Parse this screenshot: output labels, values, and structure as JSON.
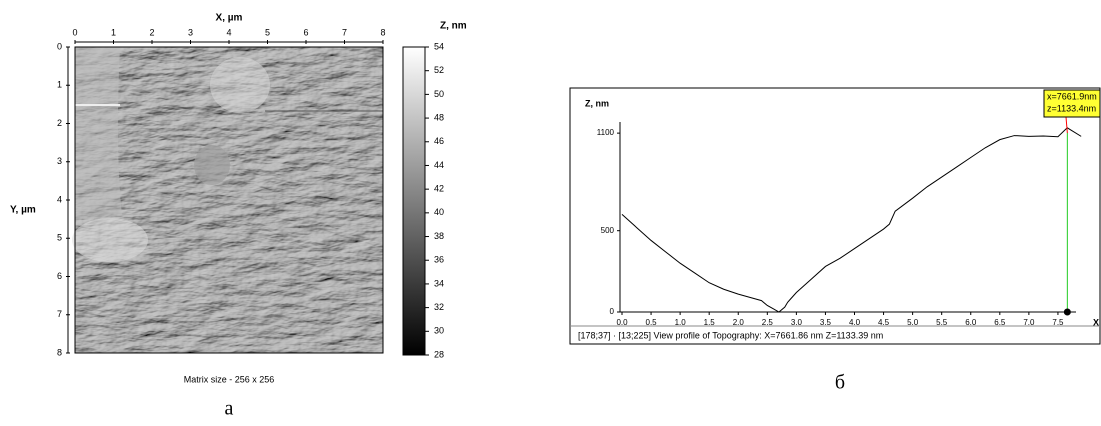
{
  "chart_data": [
    {
      "type": "image",
      "xlabel": "X, µm",
      "ylabel": "Y, µm",
      "colorbar_label": "Z, nm",
      "xlim": [
        0,
        8
      ],
      "ylim": [
        0,
        8
      ],
      "y_inverted": true,
      "xticks": [
        0,
        1,
        2,
        3,
        4,
        5,
        6,
        7,
        8
      ],
      "yticks": [
        0,
        1,
        2,
        3,
        4,
        5,
        6,
        7,
        8
      ],
      "zlim": [
        28,
        54
      ],
      "zticks": [
        28,
        30,
        32,
        34,
        36,
        38,
        40,
        42,
        44,
        46,
        48,
        50,
        52,
        54
      ],
      "note": "Matrix size - 256 x 256",
      "caption": "а"
    },
    {
      "type": "line",
      "ylabel": "Z, nm",
      "xlabel": "X",
      "color": "#000000",
      "x": [
        0,
        0.25,
        0.5,
        0.75,
        1.0,
        1.25,
        1.5,
        1.75,
        2.0,
        2.1,
        2.2,
        2.4,
        2.5,
        2.6,
        2.7,
        2.8,
        2.85,
        2.9,
        3.0,
        3.25,
        3.5,
        3.75,
        4.0,
        4.25,
        4.5,
        4.6,
        4.7,
        5.0,
        5.25,
        5.5,
        5.75,
        6.0,
        6.25,
        6.5,
        6.75,
        7.0,
        7.25,
        7.5,
        7.66,
        7.9
      ],
      "values": [
        600,
        520,
        440,
        370,
        300,
        240,
        180,
        140,
        110,
        100,
        90,
        70,
        40,
        20,
        0,
        30,
        60,
        80,
        120,
        200,
        280,
        330,
        390,
        450,
        510,
        540,
        620,
        700,
        770,
        830,
        890,
        950,
        1010,
        1060,
        1085,
        1080,
        1082,
        1078,
        1133,
        1080
      ],
      "xlim": [
        0,
        8
      ],
      "ylim": [
        0,
        1150
      ],
      "xticks": [
        {
          "value": 0,
          "label": "0.0"
        },
        {
          "value": 0.5,
          "label": "0.5"
        },
        {
          "value": 1,
          "label": "1.0"
        },
        {
          "value": 1.5,
          "label": "1.5"
        },
        {
          "value": 2,
          "label": "2.0"
        },
        {
          "value": 2.5,
          "label": "2.5"
        },
        {
          "value": 3,
          "label": "3.0"
        },
        {
          "value": 3.5,
          "label": "3.5"
        },
        {
          "value": 4,
          "label": "4.0"
        },
        {
          "value": 4.5,
          "label": "4.5"
        },
        {
          "value": 5,
          "label": "5.0"
        },
        {
          "value": 5.5,
          "label": "5.5"
        },
        {
          "value": 6,
          "label": "6.0"
        },
        {
          "value": 6.5,
          "label": "6.5"
        },
        {
          "value": 7,
          "label": "7.0"
        },
        {
          "value": 7.5,
          "label": "7.5"
        }
      ],
      "yticks": [
        0,
        500,
        1100
      ],
      "cursor_x": 7.66186,
      "cursor_labels": [
        "x=7661.9nm",
        "z=1133.4nm"
      ],
      "status": "[178;37] · [13;225]   View profile of Topography:  X=7661.86 nm  Z=1133.39 nm",
      "caption": "б"
    }
  ]
}
